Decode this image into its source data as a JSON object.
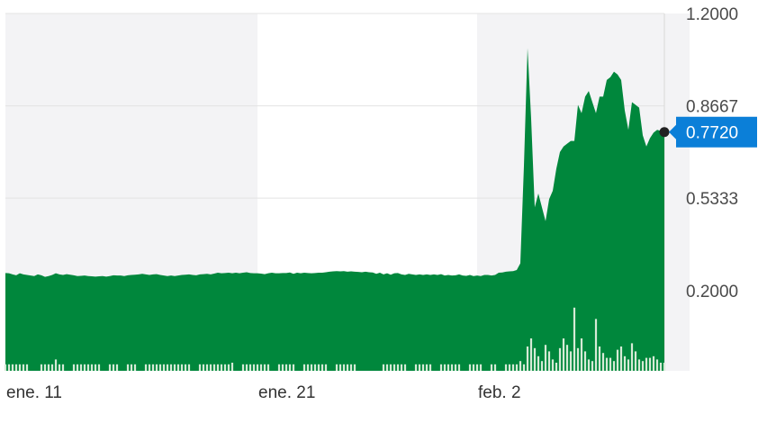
{
  "chart_data": {
    "type": "area",
    "y_ticks": [
      "1.2000",
      "0.8667",
      "0.5333",
      "0.2000"
    ],
    "y_tick_values": [
      1.2,
      0.8667,
      0.5333,
      0.2
    ],
    "ylim": [
      -0.09,
      1.2
    ],
    "x_ticks": [
      {
        "label": "ene. 11",
        "index": 0
      },
      {
        "label": "ene. 21",
        "index": 70
      },
      {
        "label": "feb. 2",
        "index": 131
      }
    ],
    "shaded_bands": [
      {
        "from": 0,
        "to": 70
      },
      {
        "from": 131,
        "to": 190
      }
    ],
    "current_value": "0.7720",
    "current_value_number": 0.772,
    "grid": true,
    "colors": {
      "area": "#00873c",
      "band": "#f3f3f5",
      "grid": "#e3e3e3",
      "badge": "#0b7fd8",
      "volume": "#d6ead6",
      "marker": "#222222"
    },
    "series": [
      {
        "values": [
          0.263,
          0.262,
          0.258,
          0.255,
          0.262,
          0.258,
          0.256,
          0.254,
          0.252,
          0.258,
          0.255,
          0.249,
          0.252,
          0.256,
          0.262,
          0.258,
          0.256,
          0.259,
          0.257,
          0.255,
          0.252,
          0.253,
          0.254,
          0.252,
          0.251,
          0.25,
          0.251,
          0.252,
          0.25,
          0.252,
          0.255,
          0.254,
          0.254,
          0.252,
          0.255,
          0.256,
          0.257,
          0.258,
          0.26,
          0.258,
          0.256,
          0.258,
          0.259,
          0.256,
          0.254,
          0.252,
          0.254,
          0.252,
          0.254,
          0.256,
          0.257,
          0.258,
          0.256,
          0.255,
          0.258,
          0.259,
          0.26,
          0.258,
          0.261,
          0.264,
          0.262,
          0.263,
          0.264,
          0.262,
          0.264,
          0.262,
          0.264,
          0.266,
          0.263,
          0.262,
          0.262,
          0.261,
          0.259,
          0.262,
          0.264,
          0.262,
          0.262,
          0.263,
          0.263,
          0.265,
          0.26,
          0.264,
          0.262,
          0.264,
          0.263,
          0.262,
          0.263,
          0.264,
          0.264,
          0.266,
          0.268,
          0.269,
          0.27,
          0.269,
          0.27,
          0.268,
          0.269,
          0.268,
          0.267,
          0.266,
          0.268,
          0.266,
          0.265,
          0.26,
          0.264,
          0.258,
          0.262,
          0.257,
          0.262,
          0.263,
          0.258,
          0.256,
          0.26,
          0.258,
          0.256,
          0.258,
          0.256,
          0.258,
          0.256,
          0.258,
          0.256,
          0.259,
          0.254,
          0.256,
          0.254,
          0.255,
          0.258,
          0.254,
          0.253,
          0.256,
          0.252,
          0.254,
          0.252,
          0.256,
          0.256,
          0.254,
          0.256,
          0.264,
          0.265,
          0.268,
          0.269,
          0.27,
          0.274,
          0.298,
          0.65,
          1.075,
          0.82,
          0.5,
          0.55,
          0.5,
          0.45,
          0.53,
          0.56,
          0.64,
          0.7,
          0.72,
          0.73,
          0.74,
          0.74,
          0.87,
          0.84,
          0.9,
          0.92,
          0.88,
          0.84,
          0.9,
          0.9,
          0.96,
          0.97,
          0.99,
          0.98,
          0.96,
          0.85,
          0.78,
          0.88,
          0.87,
          0.86,
          0.76,
          0.72,
          0.75,
          0.77,
          0.78,
          0.776,
          0.772
        ]
      }
    ],
    "volume": [
      0.08,
      0.08,
      0.08,
      0.08,
      0.08,
      0.08,
      0.08,
      0.0,
      0.0,
      0.0,
      0.08,
      0.08,
      0.08,
      0.08,
      0.14,
      0.08,
      0.08,
      0.0,
      0.0,
      0.08,
      0.08,
      0.08,
      0.08,
      0.08,
      0.08,
      0.08,
      0.08,
      0.0,
      0.0,
      0.08,
      0.08,
      0.08,
      0.0,
      0.0,
      0.08,
      0.08,
      0.08,
      0.0,
      0.0,
      0.08,
      0.08,
      0.08,
      0.08,
      0.08,
      0.08,
      0.08,
      0.08,
      0.08,
      0.08,
      0.08,
      0.08,
      0.08,
      0.0,
      0.0,
      0.08,
      0.08,
      0.08,
      0.08,
      0.08,
      0.08,
      0.08,
      0.08,
      0.08,
      0.1,
      0.0,
      0.0,
      0.08,
      0.08,
      0.08,
      0.08,
      0.08,
      0.08,
      0.08,
      0.08,
      0.0,
      0.0,
      0.08,
      0.08,
      0.08,
      0.08,
      0.08,
      0.0,
      0.0,
      0.08,
      0.08,
      0.08,
      0.08,
      0.08,
      0.08,
      0.08,
      0.0,
      0.0,
      0.08,
      0.08,
      0.08,
      0.08,
      0.08,
      0.08,
      0.0,
      0.0,
      0.0,
      0.0,
      0.0,
      0.0,
      0.0,
      0.08,
      0.08,
      0.08,
      0.08,
      0.08,
      0.08,
      0.08,
      0.0,
      0.0,
      0.08,
      0.08,
      0.08,
      0.08,
      0.08,
      0.0,
      0.0,
      0.08,
      0.08,
      0.08,
      0.08,
      0.08,
      0.08,
      0.0,
      0.0,
      0.08,
      0.08,
      0.08,
      0.08,
      0.0,
      0.0,
      0.08,
      0.08,
      0.0,
      0.0,
      0.08,
      0.08,
      0.08,
      0.08,
      0.12,
      0.08,
      0.3,
      0.4,
      0.28,
      0.18,
      0.12,
      0.32,
      0.24,
      0.14,
      0.1,
      0.28,
      0.4,
      0.32,
      0.24,
      0.78,
      0.28,
      0.4,
      0.24,
      0.14,
      0.12,
      0.64,
      0.3,
      0.22,
      0.16,
      0.16,
      0.12,
      0.26,
      0.3,
      0.18,
      0.14,
      0.34,
      0.24,
      0.14,
      0.12,
      0.16,
      0.16,
      0.18,
      0.14,
      0.1,
      0.1
    ]
  }
}
